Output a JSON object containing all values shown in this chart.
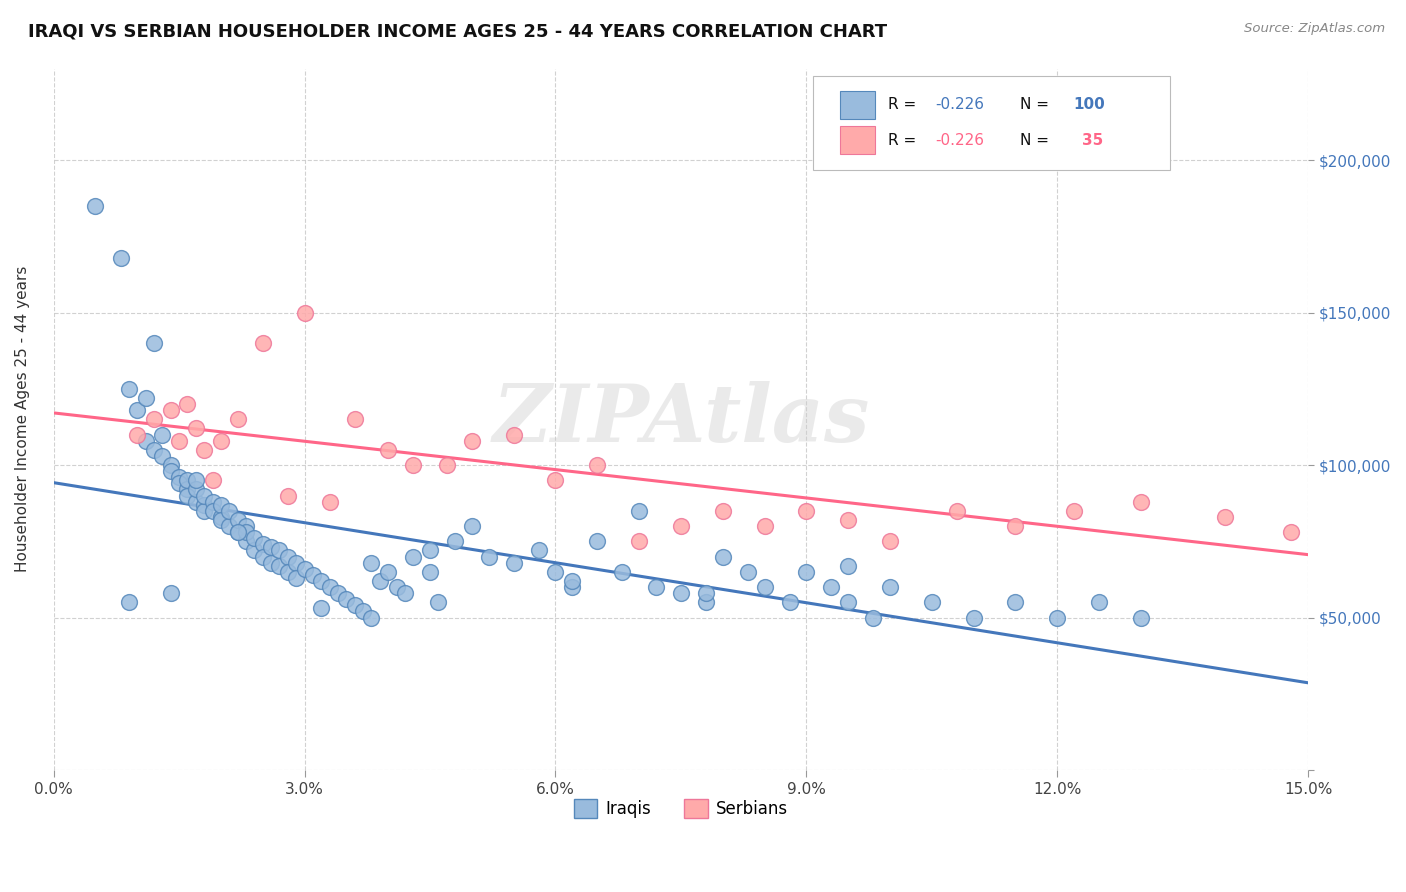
{
  "title": "IRAQI VS SERBIAN HOUSEHOLDER INCOME AGES 25 - 44 YEARS CORRELATION CHART",
  "source": "Source: ZipAtlas.com",
  "ylabel": "Householder Income Ages 25 - 44 years",
  "xlim": [
    0.0,
    0.15
  ],
  "ylim": [
    0,
    230000
  ],
  "xticks": [
    0.0,
    0.03,
    0.06,
    0.09,
    0.12,
    0.15
  ],
  "xtick_labels": [
    "0.0%",
    "3.0%",
    "6.0%",
    "9.0%",
    "12.0%",
    "15.0%"
  ],
  "yticks": [
    0,
    50000,
    100000,
    150000,
    200000
  ],
  "ytick_labels": [
    "",
    "$50,000",
    "$100,000",
    "$150,000",
    "$200,000"
  ],
  "iraqi_color": "#99BBDD",
  "serbian_color": "#FFAAAA",
  "iraqi_edge_color": "#5588BB",
  "serbian_edge_color": "#EE7799",
  "iraqi_line_color": "#4477BB",
  "serbian_line_color": "#FF6688",
  "background_color": "#FFFFFF",
  "grid_color": "#CCCCCC",
  "watermark": "ZIPAtlas",
  "iraqi_x": [
    0.005,
    0.008,
    0.009,
    0.01,
    0.011,
    0.011,
    0.012,
    0.013,
    0.013,
    0.014,
    0.014,
    0.015,
    0.015,
    0.016,
    0.016,
    0.016,
    0.017,
    0.017,
    0.018,
    0.018,
    0.018,
    0.019,
    0.019,
    0.02,
    0.02,
    0.02,
    0.021,
    0.021,
    0.022,
    0.022,
    0.023,
    0.023,
    0.023,
    0.024,
    0.024,
    0.025,
    0.025,
    0.026,
    0.026,
    0.027,
    0.027,
    0.028,
    0.028,
    0.029,
    0.029,
    0.03,
    0.031,
    0.032,
    0.033,
    0.034,
    0.035,
    0.036,
    0.037,
    0.038,
    0.039,
    0.04,
    0.041,
    0.042,
    0.043,
    0.045,
    0.046,
    0.048,
    0.05,
    0.052,
    0.055,
    0.058,
    0.06,
    0.062,
    0.065,
    0.068,
    0.07,
    0.072,
    0.075,
    0.078,
    0.08,
    0.083,
    0.085,
    0.088,
    0.09,
    0.093,
    0.095,
    0.098,
    0.1,
    0.105,
    0.11,
    0.115,
    0.12,
    0.125,
    0.13,
    0.009,
    0.014,
    0.017,
    0.022,
    0.032,
    0.038,
    0.045,
    0.062,
    0.078,
    0.095,
    0.012
  ],
  "iraqi_y": [
    185000,
    168000,
    125000,
    118000,
    122000,
    108000,
    105000,
    110000,
    103000,
    100000,
    98000,
    96000,
    94000,
    92000,
    95000,
    90000,
    88000,
    92000,
    87000,
    85000,
    90000,
    88000,
    85000,
    83000,
    87000,
    82000,
    80000,
    85000,
    78000,
    82000,
    80000,
    75000,
    78000,
    72000,
    76000,
    74000,
    70000,
    73000,
    68000,
    72000,
    67000,
    70000,
    65000,
    68000,
    63000,
    66000,
    64000,
    62000,
    60000,
    58000,
    56000,
    54000,
    52000,
    50000,
    62000,
    65000,
    60000,
    58000,
    70000,
    65000,
    55000,
    75000,
    80000,
    70000,
    68000,
    72000,
    65000,
    60000,
    75000,
    65000,
    85000,
    60000,
    58000,
    55000,
    70000,
    65000,
    60000,
    55000,
    65000,
    60000,
    55000,
    50000,
    60000,
    55000,
    50000,
    55000,
    50000,
    55000,
    50000,
    55000,
    58000,
    95000,
    78000,
    53000,
    68000,
    72000,
    62000,
    58000,
    67000,
    140000
  ],
  "serbian_x": [
    0.01,
    0.012,
    0.014,
    0.015,
    0.016,
    0.017,
    0.018,
    0.019,
    0.02,
    0.022,
    0.025,
    0.028,
    0.03,
    0.033,
    0.036,
    0.04,
    0.043,
    0.047,
    0.05,
    0.055,
    0.06,
    0.065,
    0.07,
    0.075,
    0.08,
    0.085,
    0.09,
    0.095,
    0.1,
    0.108,
    0.115,
    0.122,
    0.13,
    0.14,
    0.148
  ],
  "serbian_y": [
    110000,
    115000,
    118000,
    108000,
    120000,
    112000,
    105000,
    95000,
    108000,
    115000,
    140000,
    90000,
    150000,
    88000,
    115000,
    105000,
    100000,
    100000,
    108000,
    110000,
    95000,
    100000,
    75000,
    80000,
    85000,
    80000,
    85000,
    82000,
    75000,
    85000,
    80000,
    85000,
    88000,
    83000,
    78000
  ]
}
